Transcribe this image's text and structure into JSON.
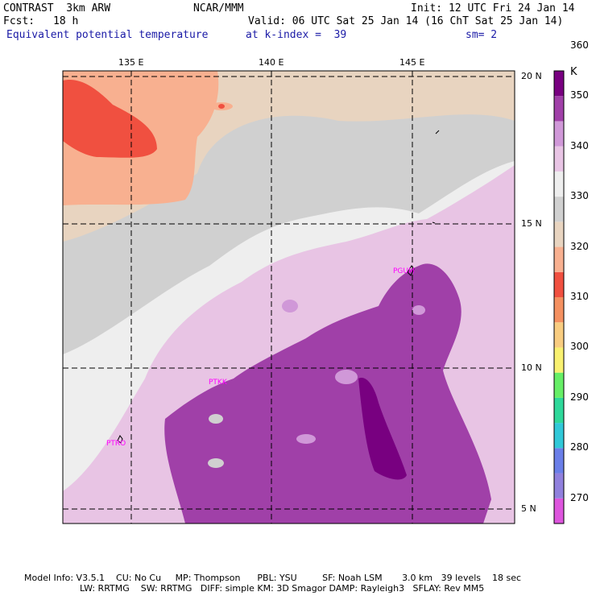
{
  "header": {
    "model": "CONTRAST  3km ARW",
    "org": "NCAR/MMM",
    "init": "Init: 12 UTC Fri 24 Jan 14",
    "fcst_label": "Fcst:",
    "fcst_value": "18 h",
    "valid": "Valid: 06 UTC Sat 25 Jan 14 (16 ChT Sat 25 Jan 14)",
    "field": "Equivalent potential temperature",
    "level": "at k-index =  39",
    "smooth": "sm= 2"
  },
  "axes": {
    "lon_labels": [
      "135 E",
      "140 E",
      "145 E"
    ],
    "lat_labels": [
      "20 N",
      "15 N",
      "10 N",
      "5 N"
    ]
  },
  "colorbar": {
    "unit": "K",
    "labels": [
      "270",
      "280",
      "290",
      "300",
      "310",
      "320",
      "330",
      "340",
      "350",
      "360"
    ],
    "colors": [
      "#dd55dd",
      "#9080dd",
      "#6a7ee8",
      "#30c8d8",
      "#2ed89a",
      "#66ee66",
      "#f8f070",
      "#f8cc80",
      "#f49060",
      "#f05040",
      "#f8b090",
      "#e8d4c0",
      "#d0d0d0",
      "#eeeeee",
      "#e8c4e4",
      "#d098d8",
      "#a040a8",
      "#780080"
    ]
  },
  "sites": [
    "PGUM",
    "PTKK",
    "PTRO"
  ],
  "footer": {
    "line1": "Model Info: V3.5.1    CU: No Cu     MP: Thompson      PBL: YSU         SF: Noah LSM       3.0 km   39 levels    18 sec",
    "line2": "LW: RRTMG    SW: RRTMG   DIFF: simple KM: 3D Smagor DAMP: Rayleigh3   SFLAY: Rev MM5"
  }
}
